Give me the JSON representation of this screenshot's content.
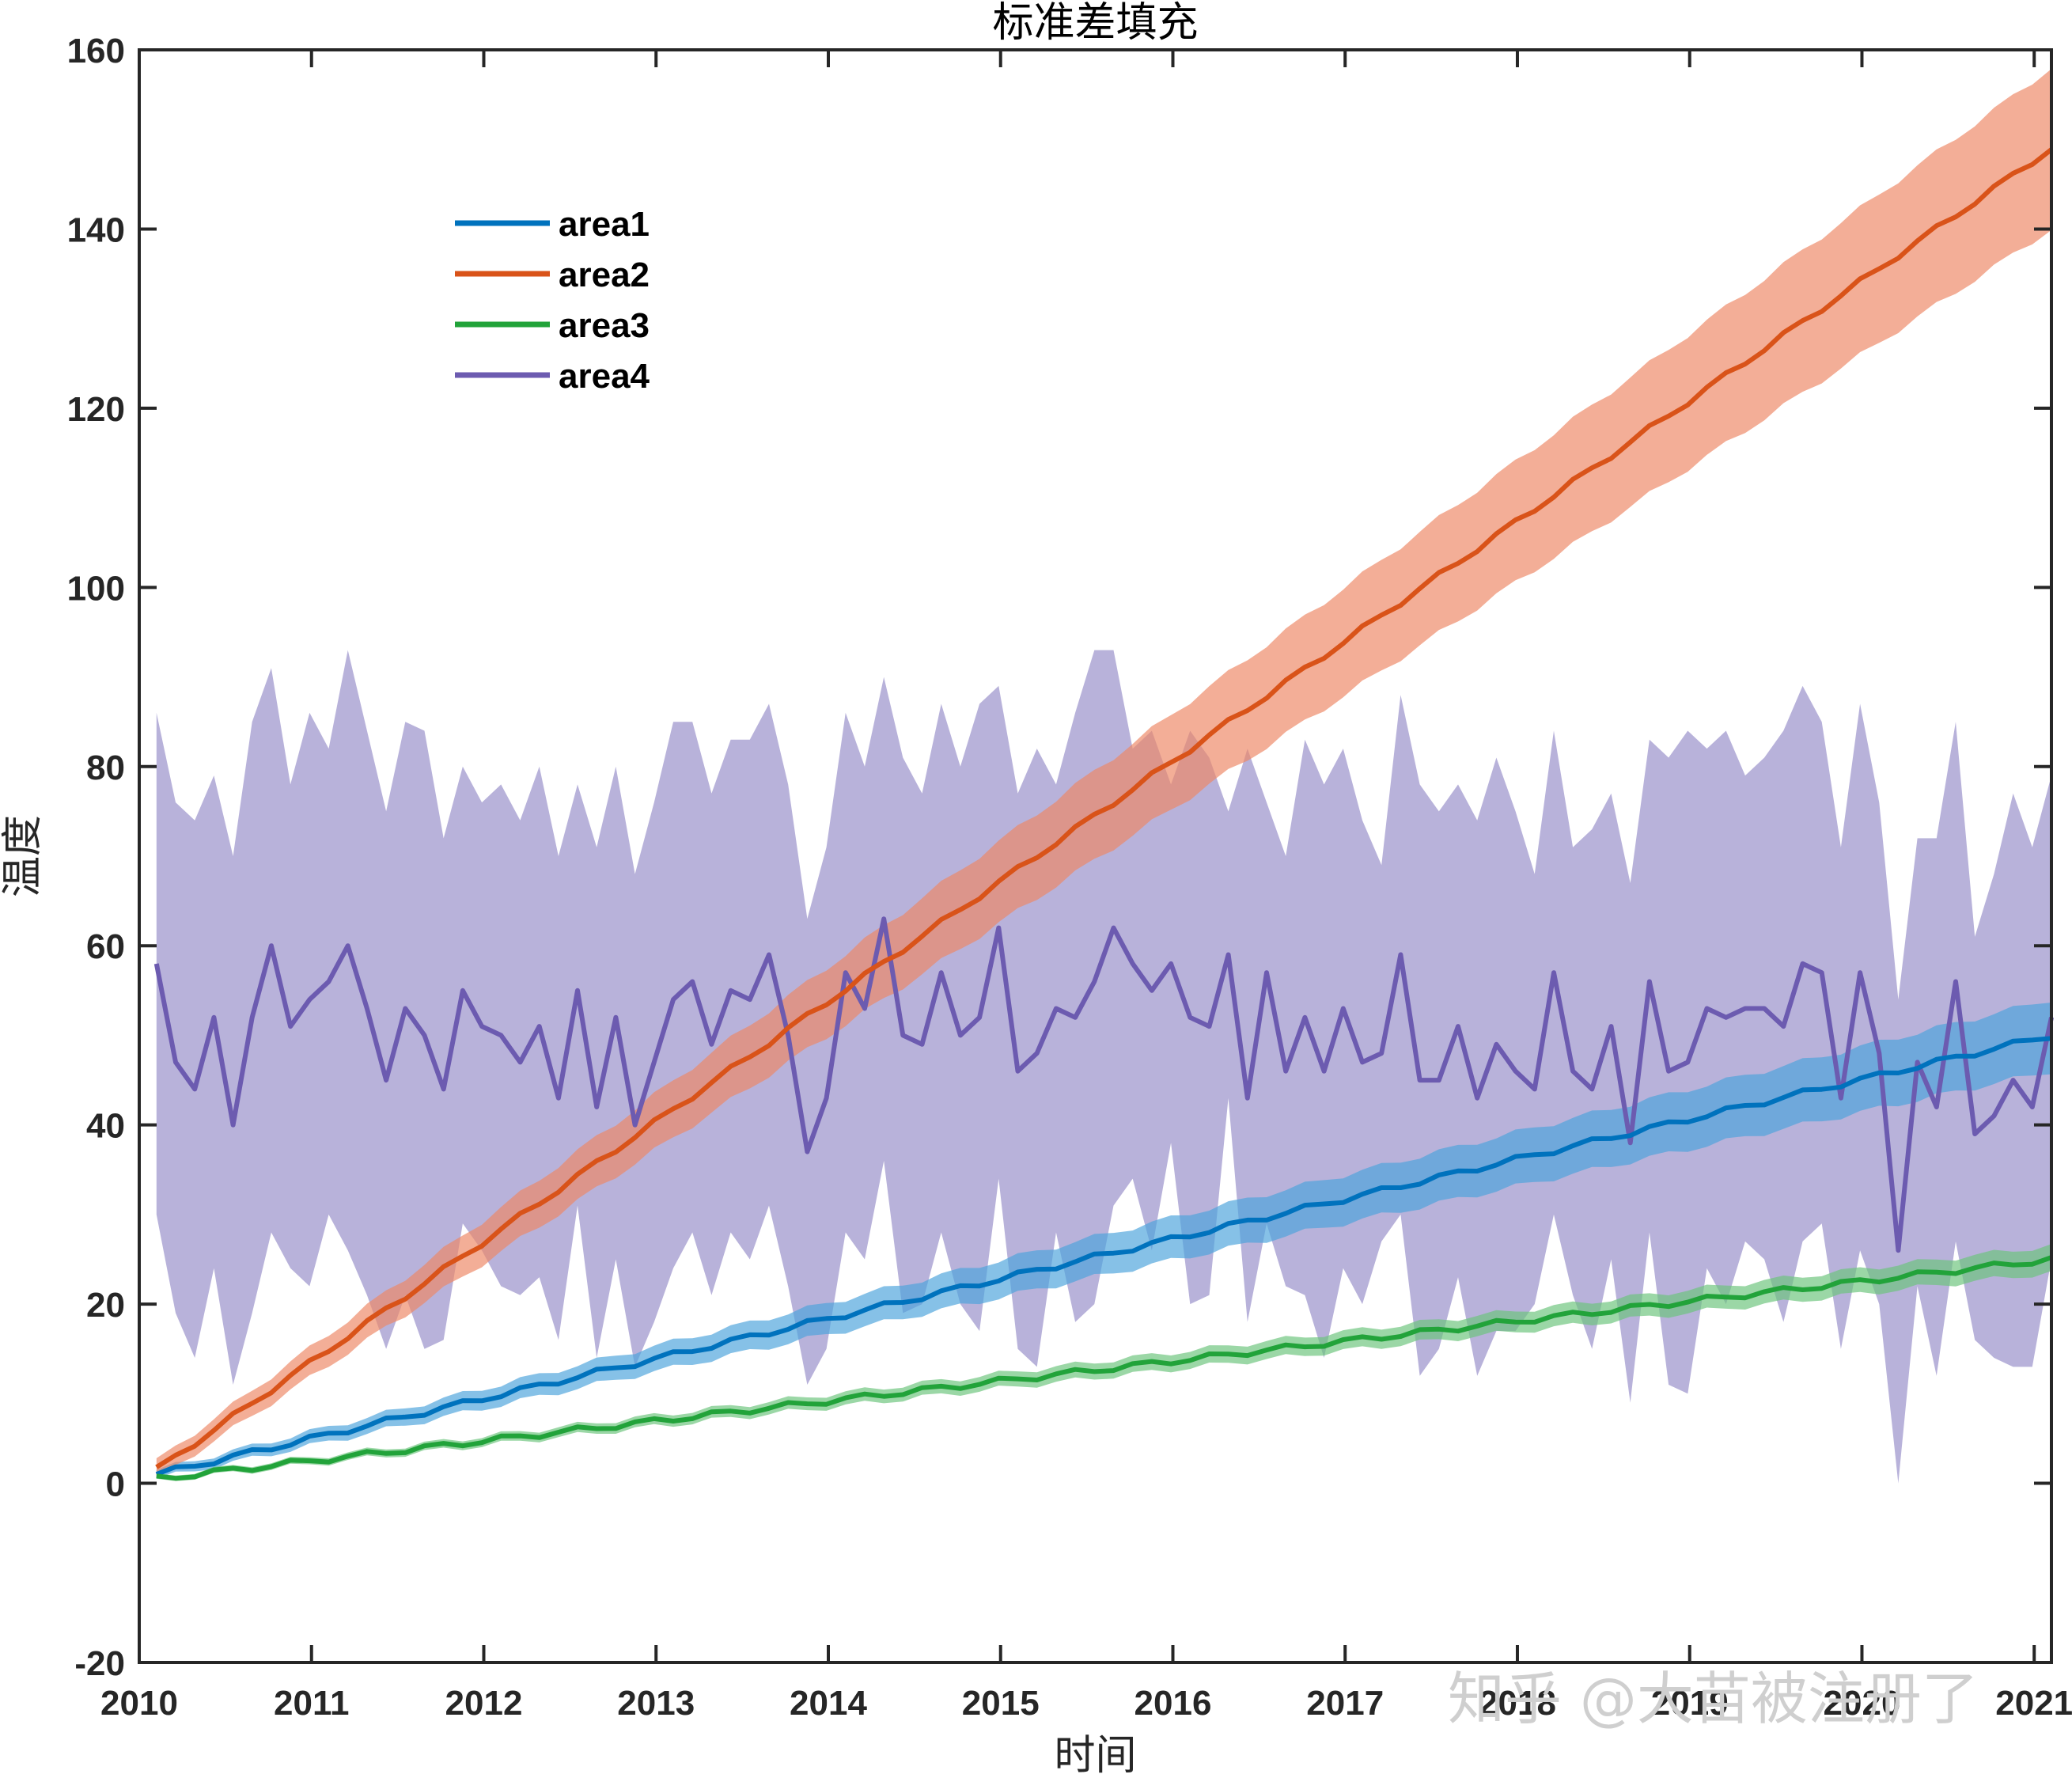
{
  "chart_data": {
    "type": "line",
    "title": "标准差填充",
    "xlabel": "时间",
    "ylabel": "温度",
    "xlim": [
      2010,
      2021.1
    ],
    "ylim": [
      -20,
      160
    ],
    "x_ticks": [
      "2010",
      "2011",
      "2012",
      "2013",
      "2014",
      "2015",
      "2016",
      "2017",
      "2018",
      "2019",
      "2020",
      "2021"
    ],
    "y_ticks": [
      "-20",
      "0",
      "20",
      "40",
      "60",
      "80",
      "100",
      "120",
      "140",
      "160"
    ],
    "grid": false,
    "legend_position": "top-left",
    "note": "Each series is plotted monthly with a shaded band of +/- one standard deviation.",
    "series": [
      {
        "name": "area1",
        "color": "#0072BD",
        "band_color": "#4DA3DB",
        "start": 1,
        "end": 50,
        "band_halfwidth_start": 0.5,
        "band_halfwidth_end": 4
      },
      {
        "name": "area2",
        "color": "#D95319",
        "band_color": "#EE8866",
        "start": 1.5,
        "end": 149,
        "band_halfwidth_start": 1,
        "band_halfwidth_end": 9
      },
      {
        "name": "area3",
        "color": "#22A33A",
        "band_color": "#6CC47C",
        "start": 0.5,
        "end": 25,
        "band_halfwidth_start": 0.3,
        "band_halfwidth_end": 1.5
      },
      {
        "name": "area4",
        "color": "#6C5BB0",
        "band_color": "#9C94CC",
        "values": [
          58,
          47,
          44,
          52,
          40,
          52,
          60,
          51,
          54,
          56,
          60,
          53,
          45,
          53,
          50,
          44,
          55,
          51,
          50,
          47,
          51,
          43,
          55,
          42,
          52,
          40,
          47,
          54,
          56,
          49,
          55,
          54,
          59,
          50,
          37,
          43,
          57,
          53,
          63,
          50,
          49,
          57,
          50,
          52,
          62,
          46,
          48,
          53,
          52,
          56,
          62,
          58,
          55,
          58,
          52,
          51,
          59,
          43,
          57,
          46,
          52,
          46,
          53,
          47,
          48,
          59,
          45,
          45,
          51,
          43,
          49,
          46,
          44,
          57,
          46,
          44,
          51,
          38,
          56,
          46,
          47,
          53,
          52,
          53,
          53,
          51,
          58,
          57,
          43,
          57,
          48,
          26,
          47,
          42,
          56,
          39,
          41,
          45,
          42,
          52
        ],
        "upper": [
          86,
          76,
          74,
          79,
          70,
          85,
          91,
          78,
          86,
          82,
          93,
          84,
          75,
          85,
          84,
          72,
          80,
          76,
          78,
          74,
          80,
          70,
          78,
          71,
          80,
          68,
          76,
          85,
          85,
          77,
          83,
          83,
          87,
          78,
          63,
          71,
          86,
          80,
          90,
          81,
          77,
          87,
          80,
          87,
          89,
          77,
          82,
          78,
          86,
          93,
          93,
          82,
          84,
          78,
          84,
          81,
          75,
          82,
          76,
          70,
          83,
          78,
          82,
          74,
          69,
          88,
          78,
          75,
          78,
          74,
          81,
          75,
          68,
          84,
          71,
          73,
          77,
          67,
          83,
          81,
          84,
          82,
          84,
          79,
          81,
          84,
          89,
          85,
          71,
          87,
          76,
          54,
          72,
          72,
          85,
          61,
          68,
          77,
          71,
          79
        ],
        "lower": [
          30,
          19,
          14,
          24,
          11,
          19,
          28,
          24,
          22,
          30,
          26,
          21,
          15,
          21,
          15,
          16,
          29,
          26,
          22,
          21,
          23,
          16,
          31,
          14,
          25,
          13,
          18,
          24,
          28,
          21,
          28,
          25,
          31,
          22,
          11,
          15,
          28,
          25,
          36,
          19,
          20,
          28,
          20,
          17,
          34,
          15,
          13,
          28,
          18,
          20,
          31,
          34,
          26,
          38,
          20,
          21,
          43,
          18,
          29,
          22,
          21,
          14,
          24,
          20,
          27,
          30,
          12,
          15,
          23,
          12,
          17,
          17,
          20,
          30,
          21,
          15,
          25,
          9,
          28,
          11,
          10,
          24,
          20,
          27,
          25,
          18,
          27,
          29,
          15,
          26,
          20,
          0,
          22,
          12,
          27,
          16,
          14,
          13,
          13,
          25
        ]
      }
    ]
  },
  "watermark": "知乎 @大苗被注册了"
}
